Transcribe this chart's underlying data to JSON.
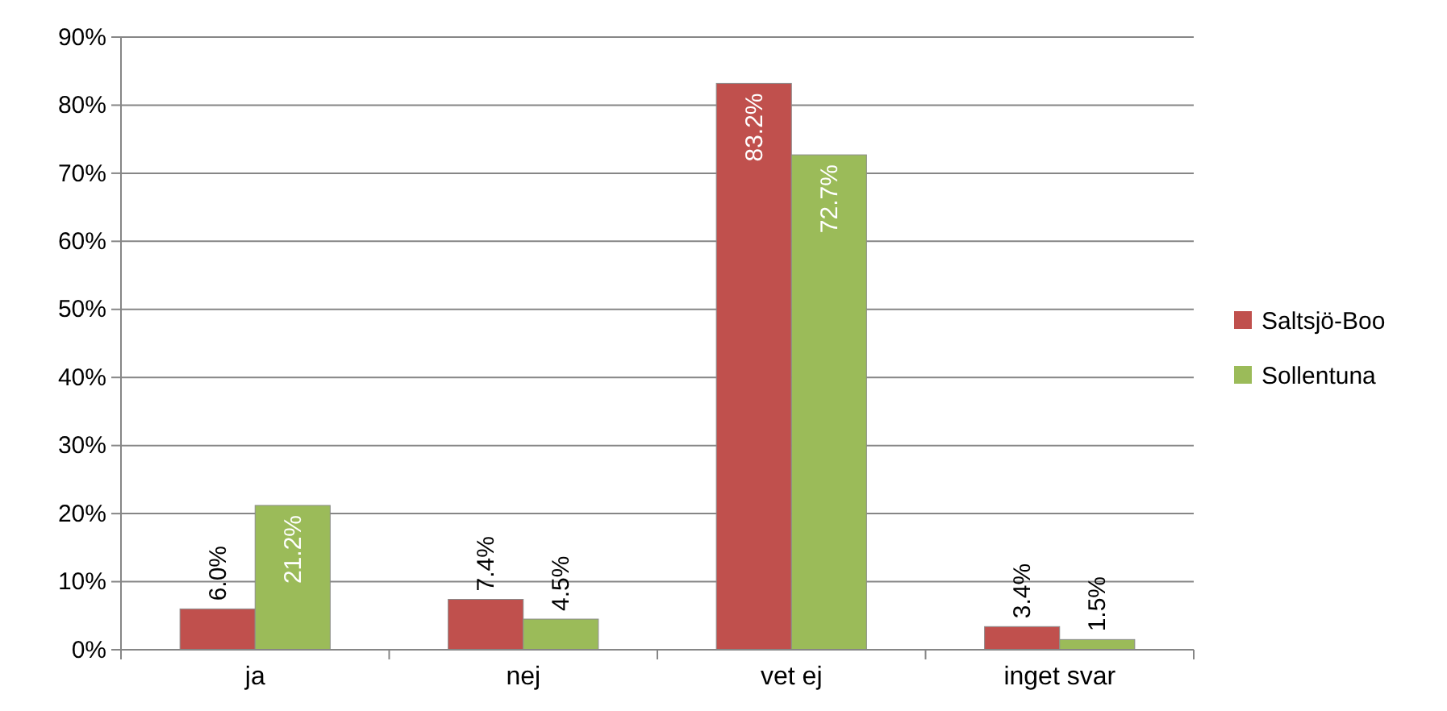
{
  "chart_data": {
    "type": "bar",
    "categories": [
      "ja",
      "nej",
      "vet ej",
      "inget svar"
    ],
    "series": [
      {
        "name": "Saltsjö-Boo",
        "color": "#c0504d",
        "values": [
          6.0,
          7.4,
          83.2,
          3.4
        ],
        "value_labels": [
          "6.0%",
          "7.4%",
          "83.2%",
          "3.4%"
        ]
      },
      {
        "name": "Sollentuna",
        "color": "#9bbb59",
        "values": [
          21.2,
          4.5,
          72.7,
          1.5
        ],
        "value_labels": [
          "21.2%",
          "4.5%",
          "72.7%",
          "1.5%"
        ]
      }
    ],
    "ylim": [
      0,
      90
    ],
    "yticks": [
      {
        "value": 0,
        "label": "0%"
      },
      {
        "value": 10,
        "label": "10%"
      },
      {
        "value": 20,
        "label": "20%"
      },
      {
        "value": 30,
        "label": "30%"
      },
      {
        "value": 40,
        "label": "40%"
      },
      {
        "value": 50,
        "label": "50%"
      },
      {
        "value": 60,
        "label": "60%"
      },
      {
        "value": 70,
        "label": "70%"
      },
      {
        "value": 80,
        "label": "80%"
      },
      {
        "value": 90,
        "label": "90%"
      }
    ],
    "grid": "y",
    "legend": "right"
  }
}
